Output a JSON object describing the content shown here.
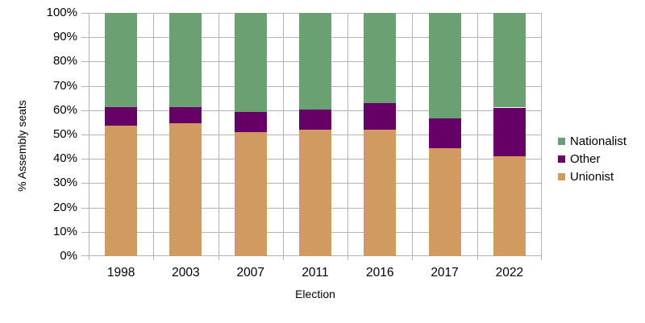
{
  "chart_data": {
    "type": "bar",
    "stacked": true,
    "title": "",
    "xlabel": "Election",
    "ylabel": "% Assembly seats",
    "categories": [
      "1998",
      "2003",
      "2007",
      "2011",
      "2016",
      "2017",
      "2022"
    ],
    "series": [
      {
        "name": "Nationalist",
        "color": "#6ba072",
        "values": [
          38.9,
          38.9,
          40.7,
          39.8,
          37.0,
          43.3,
          38.9
        ]
      },
      {
        "name": "Other",
        "color": "#660066",
        "values": [
          7.4,
          6.5,
          8.3,
          8.3,
          11.1,
          12.2,
          20.0
        ]
      },
      {
        "name": "Unionist",
        "color": "#d19a61",
        "values": [
          53.7,
          54.6,
          50.9,
          51.9,
          51.9,
          44.4,
          41.1
        ]
      }
    ],
    "ylim": [
      0,
      100
    ],
    "y_ticks": [
      "0%",
      "10%",
      "20%",
      "30%",
      "40%",
      "50%",
      "60%",
      "70%",
      "80%",
      "90%",
      "100%"
    ],
    "grid": true,
    "grid_color": "#b3b3b3",
    "text_color": "#000000",
    "legend_position": "right"
  }
}
